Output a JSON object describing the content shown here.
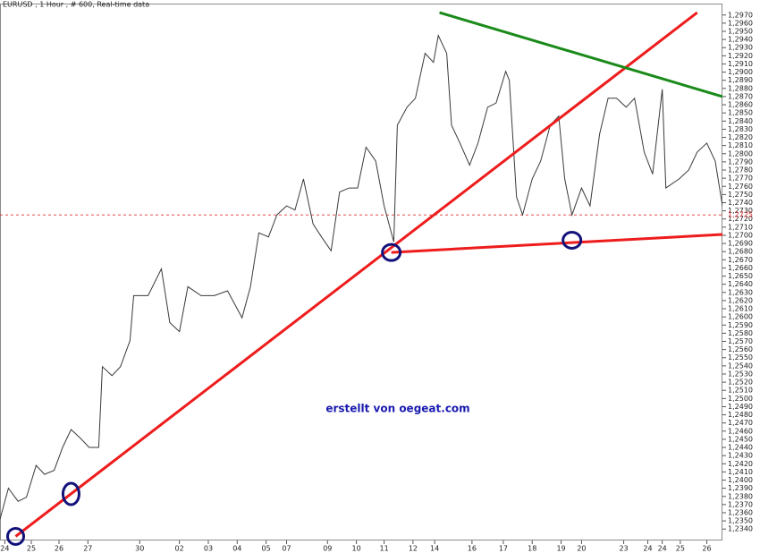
{
  "chart_data": {
    "type": "line",
    "title": "EURUSD , 1 Hour , # 600, Real-time data",
    "annotation": "erstellt von oegeat.com",
    "xlim": [
      0,
      600
    ],
    "ylim": [
      1.2326,
      1.2984
    ],
    "xticks": [
      {
        "value": 4,
        "label": "24"
      },
      {
        "value": 26,
        "label": "25"
      },
      {
        "value": 49,
        "label": "26"
      },
      {
        "value": 73,
        "label": "27"
      },
      {
        "value": 116,
        "label": "30"
      },
      {
        "value": 149,
        "label": "02"
      },
      {
        "value": 173,
        "label": "03"
      },
      {
        "value": 197,
        "label": "04"
      },
      {
        "value": 221,
        "label": "05"
      },
      {
        "value": 238,
        "label": "07"
      },
      {
        "value": 272,
        "label": "09"
      },
      {
        "value": 296,
        "label": "10"
      },
      {
        "value": 319,
        "label": "11"
      },
      {
        "value": 343,
        "label": "12"
      },
      {
        "value": 361,
        "label": "14"
      },
      {
        "value": 392,
        "label": "16"
      },
      {
        "value": 418,
        "label": "17"
      },
      {
        "value": 442,
        "label": "18"
      },
      {
        "value": 466,
        "label": "19"
      },
      {
        "value": 483,
        "label": "20"
      },
      {
        "value": 518,
        "label": "23"
      },
      {
        "value": 538,
        "label": "24"
      },
      {
        "value": 550,
        "label": "24"
      },
      {
        "value": 565,
        "label": "25"
      },
      {
        "value": 587,
        "label": "26"
      }
    ],
    "yticks": [
      {
        "value": 1.234,
        "label": "1,2340"
      },
      {
        "value": 1.235,
        "label": "1,2350"
      },
      {
        "value": 1.236,
        "label": "1,2360"
      },
      {
        "value": 1.237,
        "label": "1,2370"
      },
      {
        "value": 1.238,
        "label": "1,2380"
      },
      {
        "value": 1.239,
        "label": "1,2390"
      },
      {
        "value": 1.24,
        "label": "1,2400"
      },
      {
        "value": 1.241,
        "label": "1,2410"
      },
      {
        "value": 1.242,
        "label": "1,2420"
      },
      {
        "value": 1.243,
        "label": "1,2430"
      },
      {
        "value": 1.244,
        "label": "1,2440"
      },
      {
        "value": 1.245,
        "label": "1,2450"
      },
      {
        "value": 1.246,
        "label": "1,2460"
      },
      {
        "value": 1.247,
        "label": "1,2470"
      },
      {
        "value": 1.248,
        "label": "1,2480"
      },
      {
        "value": 1.249,
        "label": "1,2490"
      },
      {
        "value": 1.25,
        "label": "1,2500"
      },
      {
        "value": 1.251,
        "label": "1,2510"
      },
      {
        "value": 1.252,
        "label": "1,2520"
      },
      {
        "value": 1.253,
        "label": "1,2530"
      },
      {
        "value": 1.254,
        "label": "1,2540"
      },
      {
        "value": 1.255,
        "label": "1,2550"
      },
      {
        "value": 1.256,
        "label": "1,2560"
      },
      {
        "value": 1.257,
        "label": "1,2570"
      },
      {
        "value": 1.258,
        "label": "1,2580"
      },
      {
        "value": 1.259,
        "label": "1,2590"
      },
      {
        "value": 1.26,
        "label": "1,2600"
      },
      {
        "value": 1.261,
        "label": "1,2610"
      },
      {
        "value": 1.262,
        "label": "1,2620"
      },
      {
        "value": 1.263,
        "label": "1,2630"
      },
      {
        "value": 1.264,
        "label": "1,2640"
      },
      {
        "value": 1.265,
        "label": "1,2650"
      },
      {
        "value": 1.266,
        "label": "1,2660"
      },
      {
        "value": 1.267,
        "label": "1,2670"
      },
      {
        "value": 1.268,
        "label": "1,2680"
      },
      {
        "value": 1.269,
        "label": "1,2690"
      },
      {
        "value": 1.27,
        "label": "1,2700"
      },
      {
        "value": 1.271,
        "label": "1,2710"
      },
      {
        "value": 1.272,
        "label": "1,2720"
      },
      {
        "value": 1.273,
        "label": "1,2730"
      },
      {
        "value": 1.274,
        "label": "1,2740"
      },
      {
        "value": 1.275,
        "label": "1,2750"
      },
      {
        "value": 1.276,
        "label": "1,2760"
      },
      {
        "value": 1.277,
        "label": "1,2770"
      },
      {
        "value": 1.278,
        "label": "1,2780"
      },
      {
        "value": 1.279,
        "label": "1,2790"
      },
      {
        "value": 1.28,
        "label": "1,2800"
      },
      {
        "value": 1.281,
        "label": "1,2810"
      },
      {
        "value": 1.282,
        "label": "1,2820"
      },
      {
        "value": 1.283,
        "label": "1,2830"
      },
      {
        "value": 1.284,
        "label": "1,2840"
      },
      {
        "value": 1.285,
        "label": "1,2850"
      },
      {
        "value": 1.286,
        "label": "1,2860"
      },
      {
        "value": 1.287,
        "label": "1,2870"
      },
      {
        "value": 1.288,
        "label": "1,2880"
      },
      {
        "value": 1.289,
        "label": "1,2890"
      },
      {
        "value": 1.29,
        "label": "1,2900"
      },
      {
        "value": 1.291,
        "label": "1,2910"
      },
      {
        "value": 1.292,
        "label": "1,2920"
      },
      {
        "value": 1.293,
        "label": "1,2930"
      },
      {
        "value": 1.294,
        "label": "1,2940"
      },
      {
        "value": 1.295,
        "label": "1,2950"
      },
      {
        "value": 1.296,
        "label": "1,2960"
      },
      {
        "value": 1.297,
        "label": "1,2970"
      }
    ],
    "x": [
      0,
      7,
      15,
      22,
      30,
      37,
      45,
      52,
      59,
      67,
      74,
      82,
      85,
      93,
      100,
      108,
      111,
      123,
      134,
      141,
      149,
      156,
      167,
      178,
      189,
      201,
      208,
      215,
      223,
      230,
      238,
      245,
      252,
      260,
      267,
      275,
      282,
      290,
      297,
      304,
      312,
      319,
      327,
      330,
      338,
      345,
      353,
      360,
      364,
      371,
      375,
      382,
      390,
      397,
      405,
      412,
      420,
      423,
      429,
      434,
      442,
      449,
      457,
      464,
      469,
      475,
      483,
      490,
      498,
      505,
      512,
      520,
      527,
      535,
      542,
      550,
      553,
      564,
      572,
      579,
      587,
      594,
      600
    ],
    "series": [
      {
        "color": "#3a3a3a",
        "values": [
          1.2352,
          1.239,
          1.2374,
          1.2379,
          1.2418,
          1.2407,
          1.2412,
          1.244,
          1.2462,
          1.2451,
          1.244,
          1.244,
          1.2539,
          1.2528,
          1.2539,
          1.2571,
          1.2626,
          1.2626,
          1.2659,
          1.2593,
          1.2582,
          1.2637,
          1.2626,
          1.2626,
          1.2632,
          1.2599,
          1.2637,
          1.2703,
          1.2698,
          1.2725,
          1.2736,
          1.2731,
          1.2769,
          1.2714,
          1.2698,
          1.2681,
          1.2753,
          1.2758,
          1.2758,
          1.2808,
          1.2791,
          1.2736,
          1.2692,
          1.2835,
          1.2857,
          1.2868,
          1.2923,
          1.2912,
          1.2945,
          1.2923,
          1.2835,
          1.2813,
          1.2786,
          1.2813,
          1.2857,
          1.2862,
          1.2901,
          1.289,
          1.2747,
          1.2725,
          1.2769,
          1.2791,
          1.2835,
          1.2846,
          1.2769,
          1.2725,
          1.2758,
          1.2736,
          1.2824,
          1.2868,
          1.2868,
          1.2857,
          1.2868,
          1.2802,
          1.2775,
          1.2879,
          1.2758,
          1.2769,
          1.278,
          1.2802,
          1.2813,
          1.2791,
          1.2736
        ]
      }
    ],
    "current_price": {
      "value": 1.2725,
      "label": "1,2725",
      "color": "#e03030"
    },
    "trendlines": [
      {
        "color": "#ee1c1c",
        "x": [
          13,
          579
        ],
        "y": [
          1.2331,
          1.2973
        ]
      },
      {
        "color": "#ee1c1c",
        "x": [
          325,
          600
        ],
        "y": [
          1.2679,
          1.2701
        ]
      },
      {
        "color": "#1a8a1a",
        "x": [
          365,
          600
        ],
        "y": [
          1.2973,
          1.287
        ]
      }
    ],
    "markers": {
      "color": "#12127a",
      "x": [
        13,
        59,
        325,
        475
      ],
      "y": [
        1.2331,
        1.2383,
        1.2679,
        1.2694
      ]
    }
  }
}
